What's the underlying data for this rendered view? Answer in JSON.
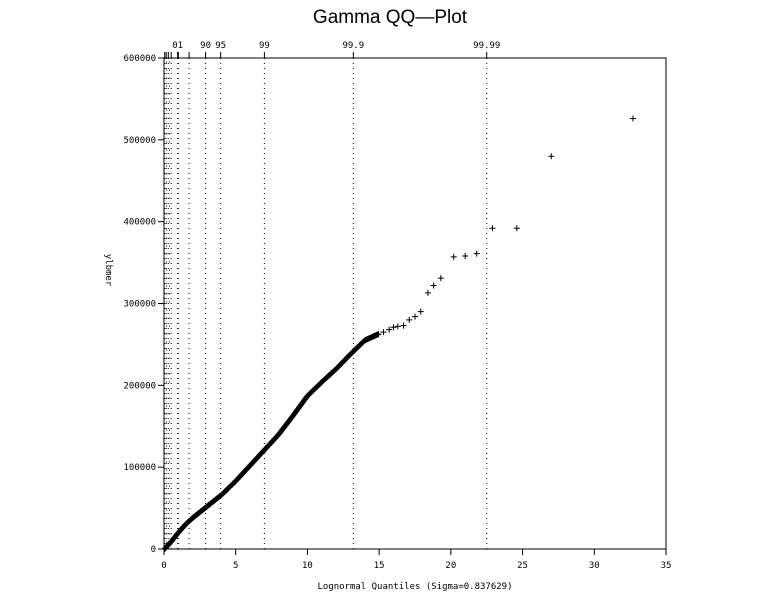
{
  "chart_data": {
    "type": "scatter",
    "title": "Gamma QQ—Plot",
    "xlabel": "Lognormal Quantiles (Sigma=0.837629)",
    "ylabel": "ylbmer",
    "xlim": [
      0,
      35
    ],
    "ylim": [
      0,
      600000
    ],
    "x_ticks": [
      0,
      5,
      10,
      15,
      20,
      25,
      30,
      35
    ],
    "y_ticks": [
      0,
      100000,
      200000,
      300000,
      400000,
      500000,
      600000
    ],
    "percentile_axis": [
      {
        "label": "01",
        "x": 0.95
      },
      {
        "label": "90",
        "x": 2.9
      },
      {
        "label": "95",
        "x": 3.95
      },
      {
        "label": "99",
        "x": 7.0
      },
      {
        "label": "99.9",
        "x": 13.2
      },
      {
        "label": "99.99",
        "x": 22.5
      }
    ],
    "percentile_minor_lines": [
      0.05,
      0.15,
      0.3,
      0.5,
      1.0,
      1.75
    ],
    "curve": [
      [
        0.05,
        0
      ],
      [
        0.2,
        3000
      ],
      [
        0.5,
        9000
      ],
      [
        1.0,
        20000
      ],
      [
        1.5,
        30000
      ],
      [
        2.0,
        38000
      ],
      [
        3.0,
        52000
      ],
      [
        4.0,
        66000
      ],
      [
        5.0,
        83000
      ],
      [
        6.0,
        102000
      ],
      [
        7.0,
        121000
      ],
      [
        8.0,
        140000
      ],
      [
        9.0,
        163000
      ],
      [
        10.0,
        187000
      ],
      [
        11.0,
        204000
      ],
      [
        12.0,
        220000
      ],
      [
        13.0,
        238000
      ],
      [
        14.0,
        255000
      ],
      [
        15.0,
        263000
      ]
    ],
    "outliers": [
      {
        "x": 15.3,
        "y": 265000
      },
      {
        "x": 15.7,
        "y": 268000
      },
      {
        "x": 16.0,
        "y": 271000
      },
      {
        "x": 16.3,
        "y": 272000
      },
      {
        "x": 16.7,
        "y": 273000
      },
      {
        "x": 17.1,
        "y": 280000
      },
      {
        "x": 17.5,
        "y": 284000
      },
      {
        "x": 17.9,
        "y": 290000
      },
      {
        "x": 18.4,
        "y": 313000
      },
      {
        "x": 18.8,
        "y": 322000
      },
      {
        "x": 19.3,
        "y": 331000
      },
      {
        "x": 20.2,
        "y": 357000
      },
      {
        "x": 21.0,
        "y": 358000
      },
      {
        "x": 21.8,
        "y": 361000
      },
      {
        "x": 22.9,
        "y": 392000
      },
      {
        "x": 24.6,
        "y": 392000
      },
      {
        "x": 27.0,
        "y": 480000
      },
      {
        "x": 32.7,
        "y": 526000
      }
    ]
  }
}
